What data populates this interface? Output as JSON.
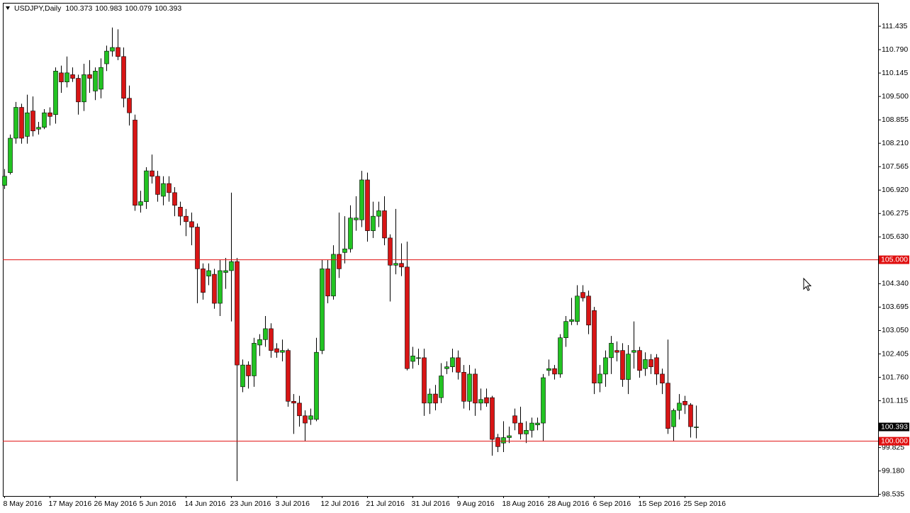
{
  "chart_data": {
    "type": "candlestick",
    "symbol": "USDJPY,Daily",
    "categories": [
      "8 May 2016",
      null,
      null,
      null,
      null,
      null,
      null,
      null,
      "17 May 2016",
      null,
      null,
      null,
      null,
      null,
      null,
      null,
      "26 May 2016",
      null,
      null,
      null,
      null,
      null,
      null,
      null,
      "5 Jun 2016",
      null,
      null,
      null,
      null,
      null,
      null,
      null,
      "14 Jun 2016",
      null,
      null,
      null,
      null,
      null,
      null,
      null,
      "23 Jun 2016",
      null,
      null,
      null,
      null,
      null,
      null,
      null,
      "3 Jul 2016",
      null,
      null,
      null,
      null,
      null,
      null,
      null,
      "12 Jul 2016",
      null,
      null,
      null,
      null,
      null,
      null,
      null,
      "21 Jul 2016",
      null,
      null,
      null,
      null,
      null,
      null,
      null,
      "31 Jul 2016",
      null,
      null,
      null,
      null,
      null,
      null,
      null,
      "9 Aug 2016",
      null,
      null,
      null,
      null,
      null,
      null,
      null,
      "18 Aug 2016",
      null,
      null,
      null,
      null,
      null,
      null,
      null,
      "28 Aug 2016",
      null,
      null,
      null,
      null,
      null,
      null,
      null,
      "6 Sep 2016",
      null,
      null,
      null,
      null,
      null,
      null,
      null,
      "15 Sep 2016",
      null,
      null,
      null,
      null,
      null,
      null,
      null,
      "25 Sep 2016",
      null,
      null
    ],
    "open": [
      107.05,
      107.4,
      108.35,
      109.2,
      108.4,
      109.1,
      108.6,
      108.65,
      109.05,
      109.0,
      110.15,
      109.9,
      110.1,
      110.0,
      109.35,
      110.1,
      109.65,
      109.7,
      110.4,
      110.75,
      110.85,
      110.6,
      109.45,
      108.85,
      106.5,
      106.6,
      107.45,
      107.3,
      106.75,
      107.1,
      106.85,
      106.45,
      106.2,
      106.05,
      105.9,
      104.75,
      104.55,
      104.6,
      103.8,
      104.65,
      104.7,
      104.95,
      101.5,
      102.1,
      101.8,
      102.65,
      102.8,
      103.1,
      102.55,
      102.45,
      102.5,
      101.1,
      101.05,
      100.7,
      100.6,
      100.6,
      102.5,
      104.75,
      104.0,
      105.15,
      105.2,
      105.3,
      106.1,
      106.1,
      107.2,
      105.8,
      106.2,
      106.35,
      105.6,
      104.85,
      104.9,
      104.8,
      102.2,
      102.3,
      102.3,
      101.05,
      101.3,
      101.2,
      102.0,
      102.05,
      102.3,
      101.9,
      101.1,
      101.85,
      101.05,
      101.2,
      101.2,
      100.1,
      99.95,
      100.1,
      100.7,
      100.5,
      100.2,
      100.3,
      100.45,
      100.5,
      101.95,
      102.0,
      101.85,
      102.85,
      103.3,
      103.3,
      104.1,
      104.0,
      103.6,
      101.6,
      101.85,
      102.3,
      102.5,
      102.5,
      101.7,
      102.45,
      102.5,
      102.0,
      102.25,
      102.3,
      101.85,
      101.6,
      100.4,
      100.85,
      101.1,
      101.0,
      100.373
    ],
    "high": [
      107.5,
      108.45,
      109.35,
      109.3,
      109.55,
      109.5,
      108.8,
      109.15,
      109.2,
      110.3,
      110.35,
      110.6,
      110.3,
      110.1,
      110.4,
      110.5,
      110.3,
      110.55,
      110.9,
      111.4,
      111.35,
      110.85,
      109.8,
      109.0,
      106.9,
      107.55,
      107.9,
      107.45,
      107.3,
      107.3,
      107.0,
      106.6,
      106.4,
      106.3,
      106.0,
      104.9,
      104.9,
      104.75,
      105.0,
      105.05,
      106.85,
      105.05,
      102.25,
      102.2,
      102.85,
      102.95,
      103.45,
      103.25,
      102.7,
      102.8,
      102.55,
      101.3,
      101.25,
      100.85,
      100.9,
      102.85,
      105.0,
      105.0,
      105.4,
      106.3,
      106.2,
      106.5,
      106.75,
      107.45,
      107.4,
      106.6,
      106.6,
      106.75,
      105.7,
      106.4,
      105.45,
      105.5,
      102.6,
      102.55,
      102.55,
      101.45,
      101.55,
      102.15,
      102.2,
      102.55,
      102.5,
      102.1,
      102.1,
      102.0,
      101.45,
      101.45,
      101.25,
      100.2,
      100.55,
      100.4,
      100.9,
      100.95,
      100.55,
      100.65,
      100.65,
      101.85,
      102.25,
      102.1,
      102.95,
      103.45,
      103.95,
      104.3,
      104.3,
      104.15,
      103.7,
      102.1,
      102.5,
      102.9,
      102.75,
      102.7,
      102.65,
      103.3,
      102.6,
      102.45,
      102.4,
      102.4,
      102.0,
      102.8,
      100.9,
      101.3,
      101.25,
      101.05,
      100.983
    ],
    "low": [
      106.95,
      107.35,
      108.2,
      108.2,
      108.2,
      108.4,
      108.45,
      108.6,
      108.7,
      108.75,
      109.6,
      109.75,
      109.9,
      109.0,
      109.1,
      109.6,
      109.4,
      109.45,
      110.2,
      110.6,
      110.5,
      109.2,
      108.7,
      106.35,
      106.3,
      106.4,
      107.1,
      106.6,
      106.5,
      106.6,
      106.2,
      105.95,
      105.65,
      105.4,
      103.8,
      103.9,
      104.3,
      103.65,
      103.45,
      104.2,
      103.3,
      98.9,
      101.35,
      101.45,
      101.5,
      102.35,
      102.6,
      102.3,
      102.3,
      102.2,
      100.95,
      100.2,
      100.4,
      100.0,
      100.45,
      100.55,
      102.4,
      103.8,
      103.9,
      104.5,
      104.9,
      105.2,
      105.8,
      105.9,
      105.5,
      105.6,
      105.9,
      105.4,
      103.85,
      104.6,
      104.55,
      101.95,
      102.0,
      102.1,
      100.7,
      100.75,
      100.85,
      101.05,
      101.85,
      101.9,
      101.7,
      100.9,
      100.85,
      100.7,
      100.85,
      100.95,
      99.6,
      99.7,
      99.7,
      99.95,
      100.3,
      100.05,
      99.95,
      100.1,
      100.3,
      100.0,
      101.8,
      101.7,
      101.75,
      102.6,
      103.2,
      103.2,
      103.85,
      102.95,
      101.3,
      101.35,
      101.5,
      101.85,
      102.2,
      101.5,
      101.3,
      102.0,
      101.75,
      101.8,
      101.85,
      101.55,
      101.3,
      100.2,
      100.0,
      100.6,
      100.75,
      100.1,
      100.079
    ],
    "close": [
      107.3,
      108.35,
      109.2,
      108.35,
      109.05,
      108.55,
      108.65,
      109.05,
      108.95,
      110.2,
      109.9,
      110.15,
      110.0,
      109.35,
      110.1,
      110.0,
      110.2,
      110.3,
      110.75,
      110.85,
      110.6,
      109.45,
      109.05,
      106.5,
      106.6,
      107.45,
      107.3,
      106.8,
      107.1,
      106.85,
      106.5,
      106.2,
      106.05,
      105.9,
      104.75,
      104.1,
      104.7,
      103.8,
      104.7,
      104.7,
      104.95,
      102.1,
      102.1,
      101.8,
      102.7,
      102.8,
      103.1,
      102.5,
      102.45,
      102.5,
      101.1,
      101.05,
      100.7,
      100.5,
      100.7,
      102.45,
      104.75,
      104.0,
      105.15,
      104.75,
      105.3,
      106.15,
      106.15,
      107.2,
      105.8,
      106.2,
      106.35,
      105.6,
      104.85,
      104.9,
      104.8,
      102.0,
      102.35,
      102.3,
      101.05,
      101.3,
      101.05,
      101.8,
      102.05,
      102.3,
      101.9,
      101.1,
      101.85,
      101.05,
      101.15,
      101.05,
      100.05,
      99.85,
      100.1,
      100.15,
      100.5,
      100.2,
      100.3,
      100.5,
      100.5,
      101.75,
      102.0,
      101.85,
      102.85,
      103.3,
      103.35,
      104.0,
      103.95,
      103.2,
      101.6,
      101.85,
      102.3,
      102.7,
      102.45,
      101.7,
      102.4,
      102.5,
      101.95,
      102.25,
      102.05,
      101.85,
      101.6,
      100.35,
      100.85,
      101.05,
      101.0,
      100.4,
      100.393
    ],
    "up_color": "#22c322",
    "down_color": "#d81515",
    "ylim": [
      98.49,
      112.08
    ],
    "yticks": [
      98.535,
      {
        "value": 99.18,
        "label": "99.180"
      },
      99.825,
      101.115,
      {
        "value": 101.76,
        "label": "101.760"
      },
      102.405,
      {
        "value": 103.05,
        "label": "103.050"
      },
      103.695,
      {
        "value": 104.34,
        "label": "104.340"
      },
      {
        "value": 105.63,
        "label": "105.630"
      },
      106.275,
      {
        "value": 106.92,
        "label": "106.920"
      },
      107.565,
      {
        "value": 108.21,
        "label": "108.210"
      },
      108.855,
      {
        "value": 109.5,
        "label": "109.500"
      },
      110.145,
      {
        "value": 110.79,
        "label": "110.790"
      },
      111.435
    ],
    "levels": [
      {
        "value": 105,
        "label": "105.000"
      },
      {
        "value": 100,
        "label": "100.000"
      }
    ],
    "level_color": "#e01010"
  }
}
